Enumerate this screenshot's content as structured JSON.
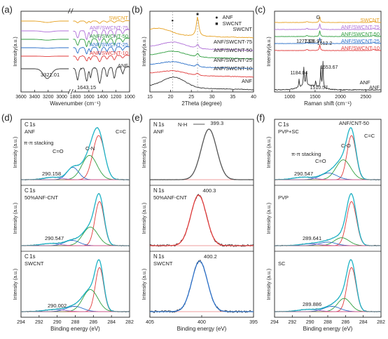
{
  "chart_data": [
    {
      "type": "line",
      "panel": "(a)",
      "xlabel": "Wavenumber (cm⁻¹)",
      "ylabel": "Intensity(a.u.)",
      "xlim": [
        3600,
        1000
      ],
      "x_axis_break": true,
      "xticks": [
        "3600",
        "3400",
        "3200",
        "3000",
        "1800",
        "1600",
        "1400",
        "1200",
        "1000"
      ],
      "series": [
        {
          "name": "SWCNT",
          "color": "#e6a020"
        },
        {
          "name": "ANF/SWCNT-75",
          "color": "#b070d8"
        },
        {
          "name": "ANF/SWCNT-50",
          "color": "#2e9e3e"
        },
        {
          "name": "ANF/SWCNT-25",
          "color": "#2a6fc8"
        },
        {
          "name": "ANF/SWCNT-10",
          "color": "#e03a3a"
        },
        {
          "name": "ANF",
          "color": "#333333"
        }
      ],
      "annotations": [
        "3321.01",
        "1643.15"
      ]
    },
    {
      "type": "line",
      "panel": "(b)",
      "xlabel": "2Theta (degree)",
      "ylabel": "Intensity(a.u.)",
      "xlim": [
        15,
        40
      ],
      "xticks": [
        "15",
        "20",
        "25",
        "30",
        "35",
        "40"
      ],
      "legend": [
        {
          "marker": "●",
          "label": "ANF"
        },
        {
          "marker": "■",
          "label": "SWCNT"
        }
      ],
      "series": [
        {
          "name": "SWCNT",
          "color": "#e6a020"
        },
        {
          "name": "ANF/SWCNT-75",
          "color": "#b070d8"
        },
        {
          "name": "ANF/SWCNT-50",
          "color": "#2e9e3e"
        },
        {
          "name": "ANF/SWCNT-25",
          "color": "#2a6fc8"
        },
        {
          "name": "ANF/SWCNT-10",
          "color": "#e03a3a"
        },
        {
          "name": "ANF",
          "color": "#333333"
        }
      ],
      "reference_lines_x": [
        20.5,
        26.5
      ]
    },
    {
      "type": "line",
      "panel": "(c)",
      "xlabel": "Raman shift (cm⁻¹)",
      "ylabel": "Intensity(a.u.)",
      "xlim": [
        700,
        2800
      ],
      "xticks": [
        "1000",
        "1500",
        "2000",
        "2500"
      ],
      "series": [
        {
          "name": "SWCNT",
          "color": "#e6a020"
        },
        {
          "name": "ANF/SWCNT-75",
          "color": "#b070d8"
        },
        {
          "name": "ANF/SWCNT-50",
          "color": "#2e9e3e"
        },
        {
          "name": "ANF/SWCNT-25",
          "color": "#2a6fc8"
        },
        {
          "name": "ANF/SWCNT-10",
          "color": "#e03a3a"
        },
        {
          "name": "ANF",
          "color": "#333333"
        }
      ],
      "annotations": [
        "G",
        "1277.13",
        "1326.97",
        "1612.2",
        "1184.04",
        "1653.67",
        "1510.57"
      ]
    },
    {
      "type": "line",
      "panel": "(d)",
      "xlabel": "Binding energy (eV)",
      "ylabel": "Intensity (a.u.)",
      "xlim": [
        294,
        281
      ],
      "xticks": [
        "294",
        "292",
        "290",
        "288",
        "286",
        "284",
        "282"
      ],
      "subpanels": [
        {
          "element": "C",
          "orbital": "1s",
          "sample": "ANF",
          "labels": [
            "π-π stacking",
            "C=O",
            "C-N",
            "C=C",
            "290.158"
          ],
          "peaks": [
            {
              "center": 284.7,
              "height": 1.0,
              "width": 0.7,
              "color": "#e03a3a"
            },
            {
              "center": 285.8,
              "height": 0.55,
              "width": 0.9,
              "color": "#2e9e3e"
            },
            {
              "center": 287.8,
              "height": 0.28,
              "width": 0.7,
              "color": "#2a6fc8"
            },
            {
              "center": 290.2,
              "height": 0.06,
              "width": 1.0,
              "color": "#b070d8"
            }
          ]
        },
        {
          "element": "C",
          "orbital": "1s",
          "sample": "50%ANF-CNT",
          "labels": [
            "290.547"
          ],
          "peaks": [
            {
              "center": 284.6,
              "height": 1.0,
              "width": 0.55,
              "color": "#e03a3a"
            },
            {
              "center": 285.7,
              "height": 0.42,
              "width": 0.9,
              "color": "#2e9e3e"
            },
            {
              "center": 287.9,
              "height": 0.12,
              "width": 0.9,
              "color": "#2a6fc8"
            },
            {
              "center": 290.5,
              "height": 0.05,
              "width": 1.1,
              "color": "#b070d8"
            }
          ]
        },
        {
          "element": "C",
          "orbital": "1s",
          "sample": "SWCNT",
          "labels": [
            "290.002"
          ],
          "peaks": [
            {
              "center": 284.6,
              "height": 1.0,
              "width": 0.5,
              "color": "#e03a3a"
            },
            {
              "center": 285.7,
              "height": 0.5,
              "width": 0.9,
              "color": "#2e9e3e"
            },
            {
              "center": 287.6,
              "height": 0.12,
              "width": 1.0,
              "color": "#2a6fc8"
            },
            {
              "center": 290.0,
              "height": 0.05,
              "width": 1.2,
              "color": "#b070d8"
            }
          ]
        }
      ]
    },
    {
      "type": "line",
      "panel": "(e)",
      "xlabel": "Binding energy (eV)",
      "ylabel": "Intensity (a.u.)",
      "xlim": [
        405,
        395
      ],
      "xticks": [
        "405",
        "400",
        "395"
      ],
      "subpanels": [
        {
          "element": "N",
          "orbital": "1s",
          "sample": "ANF",
          "labels": [
            "N-H",
            "399.3"
          ],
          "center": 399.3,
          "fit_color": "#555555"
        },
        {
          "element": "N",
          "orbital": "1s",
          "sample": "50%ANF-CNT",
          "labels": [
            "400.3"
          ],
          "center": 400.3,
          "fit_color": "#e03a3a"
        },
        {
          "element": "N",
          "orbital": "1s",
          "sample": "SWCNT",
          "labels": [
            "400.2"
          ],
          "center": 400.2,
          "fit_color": "#2a6fc8"
        }
      ]
    },
    {
      "type": "line",
      "panel": "(f)",
      "xlabel": "Binding energy (eV)",
      "ylabel": "Intensity (a.u.)",
      "xlim": [
        294,
        281
      ],
      "xticks": [
        "294",
        "292",
        "290",
        "288",
        "286",
        "284",
        "282"
      ],
      "subpanels": [
        {
          "element": "C",
          "orbital": "1s",
          "sample": "PVP+SC",
          "labels": [
            "ANF/CNT-50",
            "C=C",
            "C-O",
            "π-π stacking",
            "C=O",
            "290.547"
          ],
          "peaks": [
            {
              "center": 284.6,
              "height": 1.0,
              "width": 0.55,
              "color": "#e03a3a"
            },
            {
              "center": 285.6,
              "height": 0.45,
              "width": 0.9,
              "color": "#2e9e3e"
            },
            {
              "center": 287.4,
              "height": 0.15,
              "width": 1.0,
              "color": "#2a6fc8"
            },
            {
              "center": 290.5,
              "height": 0.06,
              "width": 1.2,
              "color": "#b070d8"
            }
          ]
        },
        {
          "element": "",
          "orbital": "",
          "sample": "PVP",
          "labels": [
            "289.641"
          ],
          "peaks": [
            {
              "center": 284.6,
              "height": 1.0,
              "width": 0.6,
              "color": "#e03a3a"
            },
            {
              "center": 285.8,
              "height": 0.18,
              "width": 0.9,
              "color": "#2e9e3e"
            },
            {
              "center": 287.5,
              "height": 0.08,
              "width": 1.0,
              "color": "#2a6fc8"
            },
            {
              "center": 289.6,
              "height": 0.04,
              "width": 1.2,
              "color": "#b070d8"
            }
          ]
        },
        {
          "element": "",
          "orbital": "",
          "sample": "SC",
          "labels": [
            "289.886"
          ],
          "peaks": [
            {
              "center": 284.6,
              "height": 1.0,
              "width": 0.55,
              "color": "#e03a3a"
            },
            {
              "center": 285.5,
              "height": 0.3,
              "width": 0.8,
              "color": "#2e9e3e"
            },
            {
              "center": 287.0,
              "height": 0.12,
              "width": 1.0,
              "color": "#2a6fc8"
            },
            {
              "center": 289.9,
              "height": 0.05,
              "width": 1.2,
              "color": "#b070d8"
            }
          ]
        }
      ]
    }
  ]
}
